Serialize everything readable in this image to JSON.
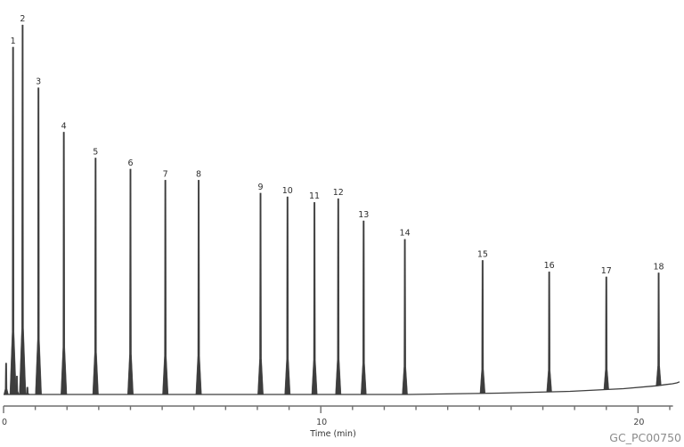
{
  "watermark": {
    "id": "GC_PC00750"
  },
  "chart_data": {
    "type": "line",
    "subtype": "chromatogram",
    "title": "",
    "xlabel": "Time (min)",
    "ylabel": "",
    "x_range": [
      0,
      21.1
    ],
    "x_ticks_labeled": [
      0,
      10,
      20
    ],
    "x_minor_tick_every_min": 1,
    "grid": false,
    "legend": "none",
    "trace_color": "#3d3d3d",
    "axis_color": "#6f6f6f",
    "tick_label_color": "#3f3f3f",
    "peak_label_color": "#2e2e2e",
    "peaks": [
      {
        "label": "1",
        "time_min": 0.3,
        "rel_height": 0.94
      },
      {
        "label": "2",
        "time_min": 0.6,
        "rel_height": 1.0
      },
      {
        "label": "3",
        "time_min": 1.1,
        "rel_height": 0.83
      },
      {
        "label": "4",
        "time_min": 1.9,
        "rel_height": 0.71
      },
      {
        "label": "5",
        "time_min": 2.9,
        "rel_height": 0.64
      },
      {
        "label": "6",
        "time_min": 4.0,
        "rel_height": 0.61
      },
      {
        "label": "7",
        "time_min": 5.1,
        "rel_height": 0.58
      },
      {
        "label": "8",
        "time_min": 6.15,
        "rel_height": 0.58
      },
      {
        "label": "9",
        "time_min": 8.1,
        "rel_height": 0.545
      },
      {
        "label": "10",
        "time_min": 8.95,
        "rel_height": 0.535
      },
      {
        "label": "11",
        "time_min": 9.8,
        "rel_height": 0.52
      },
      {
        "label": "12",
        "time_min": 10.55,
        "rel_height": 0.53
      },
      {
        "label": "13",
        "time_min": 11.35,
        "rel_height": 0.47
      },
      {
        "label": "14",
        "time_min": 12.65,
        "rel_height": 0.42
      },
      {
        "label": "15",
        "time_min": 15.1,
        "rel_height": 0.36
      },
      {
        "label": "16",
        "time_min": 17.2,
        "rel_height": 0.325
      },
      {
        "label": "17",
        "time_min": 19.0,
        "rel_height": 0.305
      },
      {
        "label": "18",
        "time_min": 20.65,
        "rel_height": 0.305
      }
    ],
    "unlabeled_features": [
      {
        "time_min": 0.08,
        "rel_height": 0.085
      },
      {
        "time_min": 0.42,
        "rel_height": 0.05
      },
      {
        "time_min": 0.75,
        "rel_height": 0.02
      }
    ],
    "baseline_note": "flat baseline with slight upward drift after ~13 min and small rise at trace end"
  }
}
